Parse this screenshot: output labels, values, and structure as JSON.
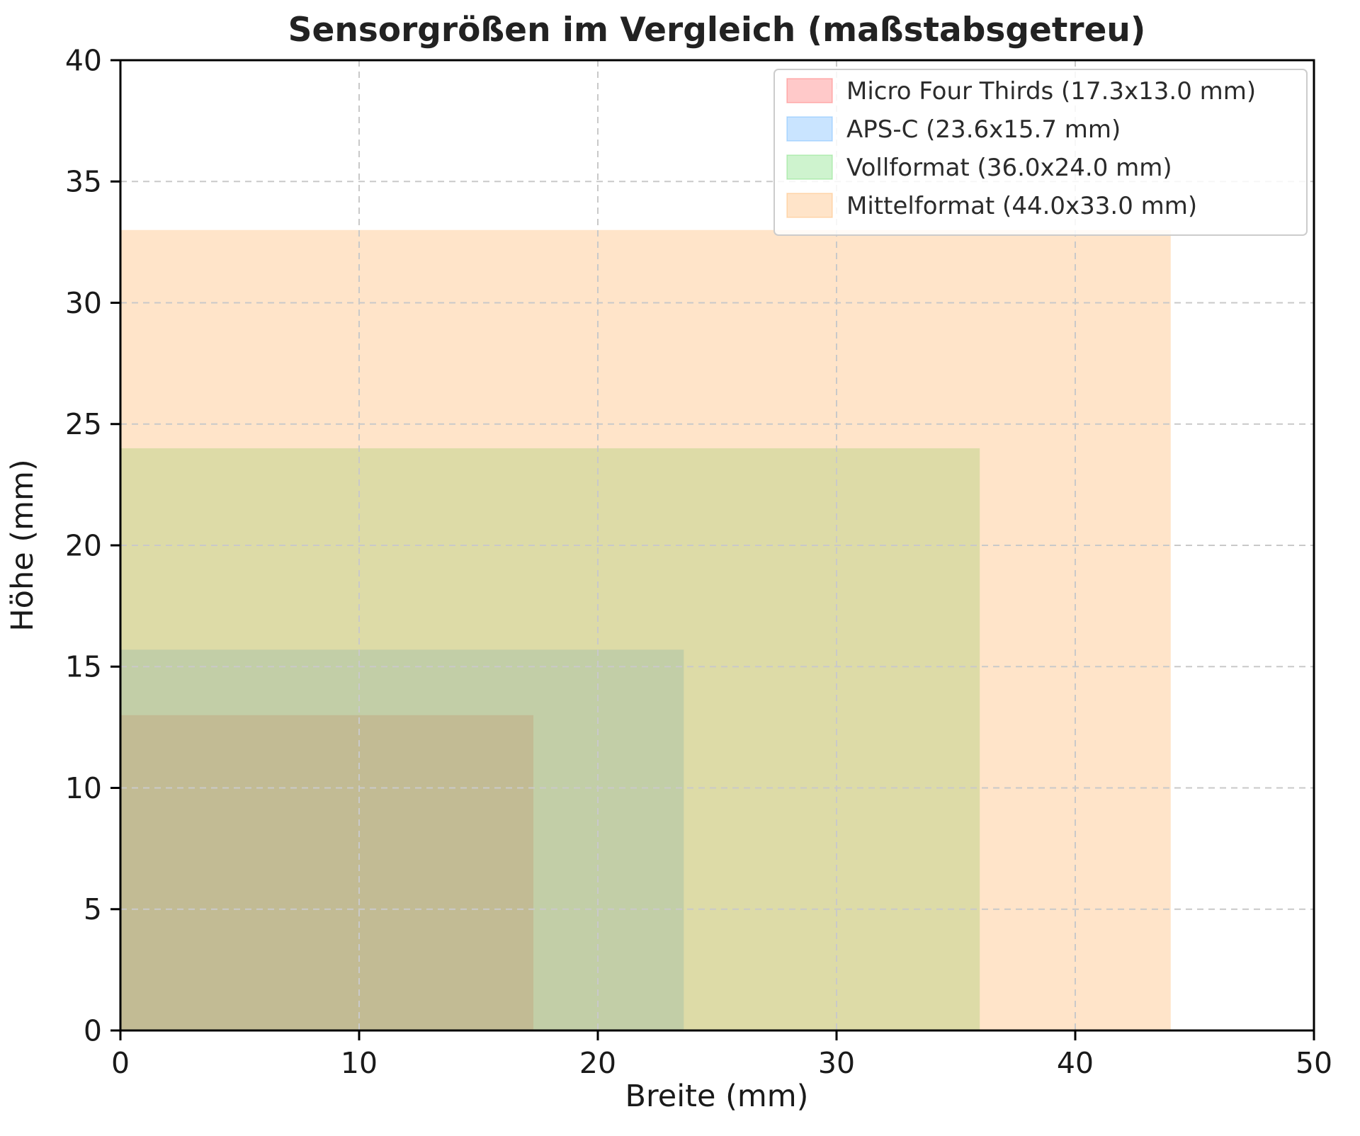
{
  "chart_data": {
    "type": "area",
    "title": "Sensorgrößen im Vergleich (maßstabsgetreu)",
    "xlabel": "Breite (mm)",
    "ylabel": "Höhe (mm)",
    "xlim": [
      0,
      50
    ],
    "ylim": [
      0,
      40
    ],
    "xticks": [
      0,
      10,
      20,
      30,
      40,
      50
    ],
    "yticks": [
      0,
      5,
      10,
      15,
      20,
      25,
      30,
      35,
      40
    ],
    "grid": true,
    "grid_style": "dashed",
    "legend_position": "upper right",
    "series": [
      {
        "name": "Micro Four Thirds (17.3x13.0 mm)",
        "width_mm": 17.3,
        "height_mm": 13.0,
        "color": "#ff4d4d",
        "alpha": 0.3
      },
      {
        "name": "APS-C (23.6x15.7 mm)",
        "width_mm": 23.6,
        "height_mm": 15.7,
        "color": "#4da6ff",
        "alpha": 0.3
      },
      {
        "name": "Vollformat (36.0x24.0 mm)",
        "width_mm": 36.0,
        "height_mm": 24.0,
        "color": "#5cd65c",
        "alpha": 0.3
      },
      {
        "name": "Mittelformat (44.0x33.0 mm)",
        "width_mm": 44.0,
        "height_mm": 33.0,
        "color": "#ffa64d",
        "alpha": 0.3
      }
    ],
    "colors": {
      "grid": "#c9c9c9",
      "spine": "#000000",
      "legend_border": "#cccccc",
      "legend_background": "#ffffff"
    }
  }
}
